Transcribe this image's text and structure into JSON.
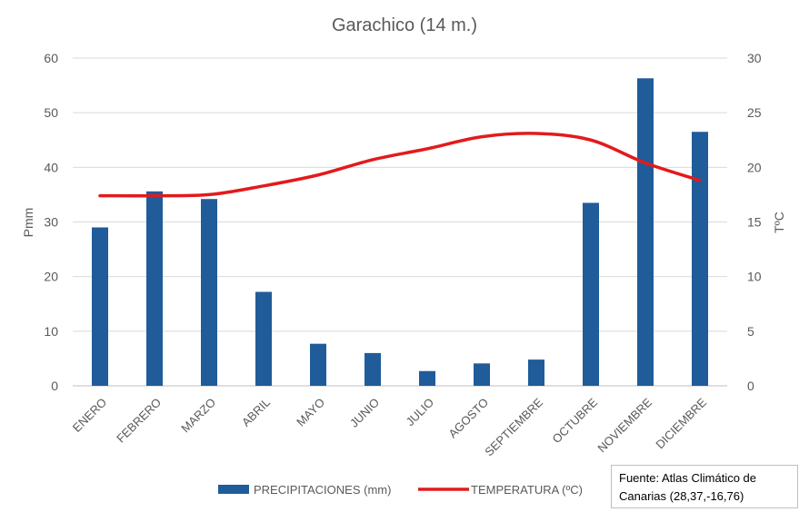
{
  "chart_data": {
    "type": "bar+line",
    "title": "Garachico (14 m.)",
    "categories": [
      "ENERO",
      "FEBRERO",
      "MARZO",
      "ABRIL",
      "MAYO",
      "JUNIO",
      "JULIO",
      "AGOSTO",
      "SEPTIEMBRE",
      "OCTUBRE",
      "NOVIEMBRE",
      "DICIEMBRE"
    ],
    "series": [
      {
        "name": "PRECIPITACIONES (mm)",
        "kind": "bar",
        "axis": "left",
        "color": "#1F5C99",
        "values": [
          29.0,
          35.6,
          34.2,
          17.2,
          7.7,
          6.0,
          2.7,
          4.1,
          4.8,
          33.5,
          56.3,
          46.5
        ]
      },
      {
        "name": "TEMPERATURA (ºC)",
        "kind": "line",
        "axis": "right",
        "color": "#E31A1C",
        "values": [
          17.4,
          17.4,
          17.5,
          18.3,
          19.3,
          20.7,
          21.7,
          22.8,
          23.1,
          22.5,
          20.4,
          18.8
        ]
      }
    ],
    "ylabel_left": "Pmm",
    "ylabel_right": "TºC",
    "ylim_left": [
      0,
      60
    ],
    "ylim_right": [
      0,
      30
    ],
    "yticks_left": [
      "0",
      "10",
      "20",
      "30",
      "40",
      "50",
      "60"
    ],
    "yticks_right": [
      "0",
      "5",
      "10",
      "15",
      "20",
      "25",
      "30"
    ],
    "grid": true,
    "legend_position": "bottom"
  },
  "source_note": {
    "line1": "Fuente: Atlas Climático de",
    "line2": "Canarias (28,37,-16,76)"
  }
}
